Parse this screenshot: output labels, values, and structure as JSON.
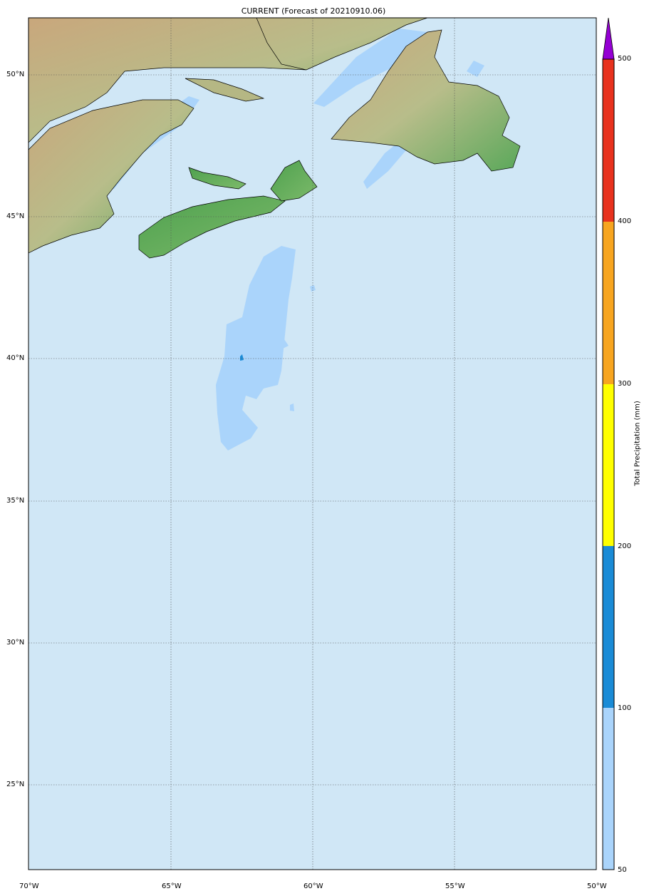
{
  "title": "CURRENT (Forecast of 20210910.06)",
  "map": {
    "projection": "equirectangular",
    "lon_range": [
      -70,
      -50
    ],
    "lat_range": [
      22,
      52
    ],
    "ocean_color": "#d0e7f6",
    "lat_labels": [
      "50°N",
      "45°N",
      "40°N",
      "35°N",
      "30°N",
      "25°N"
    ],
    "lon_labels": [
      "70°W",
      "65°W",
      "60°W",
      "55°W",
      "50°W"
    ],
    "gridlines": "dotted"
  },
  "colorbar": {
    "label": "Total Precipitation (mm)",
    "ticks": [
      "50",
      "100",
      "200",
      "300",
      "400",
      "500"
    ],
    "levels": [
      50,
      100,
      200,
      300,
      400,
      500
    ],
    "colors": [
      "#aad4fb",
      "#1a8bd6",
      "#ffff00",
      "#f7a520",
      "#e8321e"
    ],
    "extend_color": "#9400d3"
  }
}
